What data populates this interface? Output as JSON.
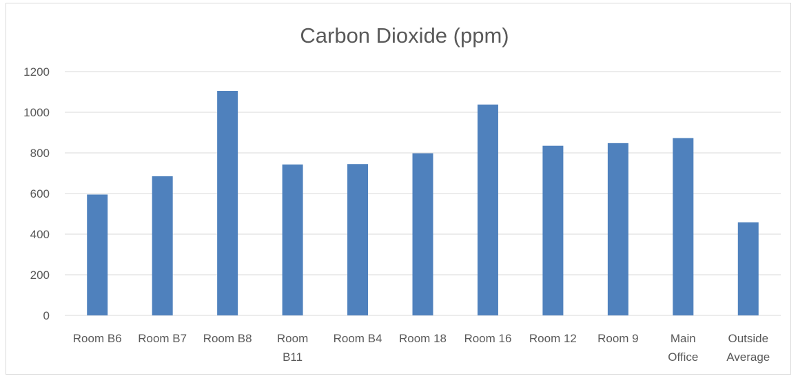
{
  "chart_data": {
    "type": "bar",
    "title": "Carbon Dioxide (ppm)",
    "xlabel": "",
    "ylabel": "",
    "categories": [
      "Room B6",
      "Room B7",
      "Room B8",
      "Room B11",
      "Room B4",
      "Room 18",
      "Room 16",
      "Room 12",
      "Room 9",
      "Main Office",
      "Outside Average"
    ],
    "category_lines": [
      [
        "Room B6"
      ],
      [
        "Room B7"
      ],
      [
        "Room B8"
      ],
      [
        "Room",
        "B11"
      ],
      [
        "Room B4"
      ],
      [
        "Room 18"
      ],
      [
        "Room 16"
      ],
      [
        "Room 12"
      ],
      [
        "Room 9"
      ],
      [
        "Main",
        "Office"
      ],
      [
        "Outside",
        "Average"
      ]
    ],
    "values": [
      595,
      685,
      1105,
      743,
      745,
      798,
      1038,
      835,
      848,
      873,
      458
    ],
    "ylim": [
      0,
      1200
    ],
    "yticks": [
      "0",
      "200",
      "400",
      "600",
      "800",
      "1000",
      "1200"
    ],
    "bar_color": "#4f81bd",
    "grid": true,
    "legend": "none"
  }
}
